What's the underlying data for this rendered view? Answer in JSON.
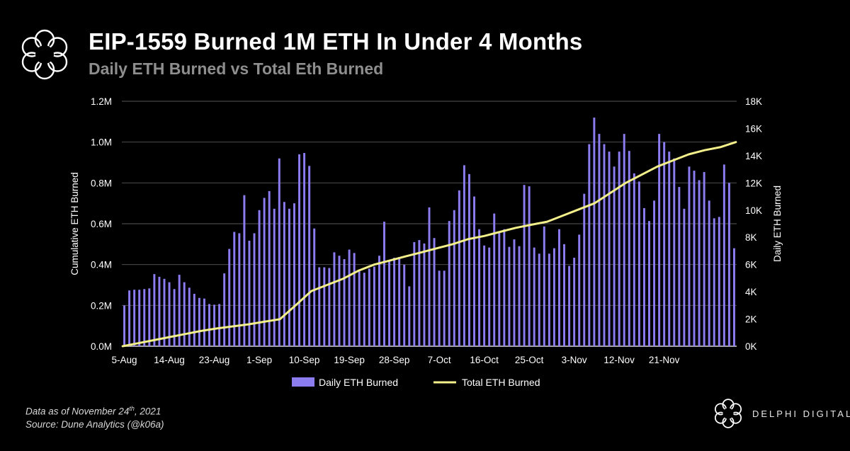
{
  "header": {
    "title": "EIP-1559 Burned 1M ETH In Under 4 Months",
    "subtitle": "Daily ETH Burned vs Total Eth Burned"
  },
  "footnote": {
    "line1_prefix": "Data as of November 24",
    "line1_sup": "th",
    "line1_suffix": ", 2021",
    "line2": "Source: Dune Analytics (@k06a)"
  },
  "brand": {
    "name": "DELPHI DIGITAL"
  },
  "colors": {
    "bar": "#8b7cf0",
    "line": "#f3ef8a",
    "background": "#000000",
    "grid": "#ffffff"
  },
  "chart_data": {
    "type": "bar",
    "x_tick_labels": [
      "5-Aug",
      "14-Aug",
      "23-Aug",
      "1-Sep",
      "10-Sep",
      "19-Sep",
      "28-Sep",
      "7-Oct",
      "16-Oct",
      "25-Oct",
      "3-Nov",
      "12-Nov",
      "21-Nov"
    ],
    "x_first_date": "5-Aug",
    "x_last_date": "24-Nov",
    "ylabel_left": "Cumulative ETH Burned",
    "ylabel_right": "Daily ETH Burned",
    "ylim_left": [
      0,
      1200000
    ],
    "ylim_right": [
      0,
      18000
    ],
    "yticks_left": [
      "0.0M",
      "0.2M",
      "0.4M",
      "0.6M",
      "0.8M",
      "1.0M",
      "1.2M"
    ],
    "yticks_right": [
      "0K",
      "2K",
      "4K",
      "6K",
      "8K",
      "10K",
      "12K",
      "14K",
      "16K",
      "18K"
    ],
    "grid": "horizontal",
    "legend_position": "bottom-center",
    "series": [
      {
        "name": "Daily ETH Burned",
        "type": "bar",
        "axis": "right",
        "values": [
          3000,
          4100,
          4150,
          4150,
          4200,
          4250,
          5300,
          5100,
          4950,
          4700,
          4200,
          5250,
          4700,
          4300,
          3850,
          3550,
          3500,
          3100,
          3050,
          3100,
          5350,
          7150,
          8400,
          8300,
          11100,
          7750,
          8300,
          10000,
          10900,
          11400,
          10100,
          13800,
          10600,
          10100,
          10500,
          14100,
          14200,
          13250,
          8650,
          5800,
          5800,
          5750,
          6900,
          6650,
          6400,
          7100,
          6850,
          5500,
          5400,
          5700,
          5850,
          6650,
          9150,
          6250,
          6500,
          6550,
          6000,
          4400,
          7650,
          7800,
          7550,
          10200,
          7950,
          5550,
          5550,
          9200,
          10000,
          11450,
          13300,
          12650,
          11000,
          8600,
          7400,
          7250,
          9750,
          8450,
          8600,
          7300,
          7850,
          7350,
          11850,
          11750,
          7250,
          6800,
          8800,
          6800,
          7200,
          8600,
          7500,
          5900,
          6500,
          8200,
          11200,
          14850,
          16800,
          15600,
          14850,
          14300,
          13200,
          14300,
          15600,
          14350,
          12700,
          12100,
          10150,
          9200,
          10700,
          15600,
          15000,
          14300,
          13800,
          11700,
          10100,
          13200,
          12900,
          12200,
          12800,
          10700,
          9400,
          9500,
          13350,
          12000,
          7200
        ]
      },
      {
        "name": "Total ETH Burned",
        "type": "line",
        "axis": "left",
        "values": [
          0,
          15000,
          30000,
          45000,
          60000,
          75000,
          87000,
          97000,
          107000,
          120000,
          132000,
          200000,
          270000,
          300000,
          330000,
          370000,
          400000,
          420000,
          440000,
          460000,
          480000,
          500000,
          525000,
          540000,
          560000,
          580000,
          595000,
          610000,
          640000,
          670000,
          700000,
          750000,
          800000,
          840000,
          880000,
          910000,
          940000,
          960000,
          975000,
          1000000
        ]
      }
    ]
  }
}
